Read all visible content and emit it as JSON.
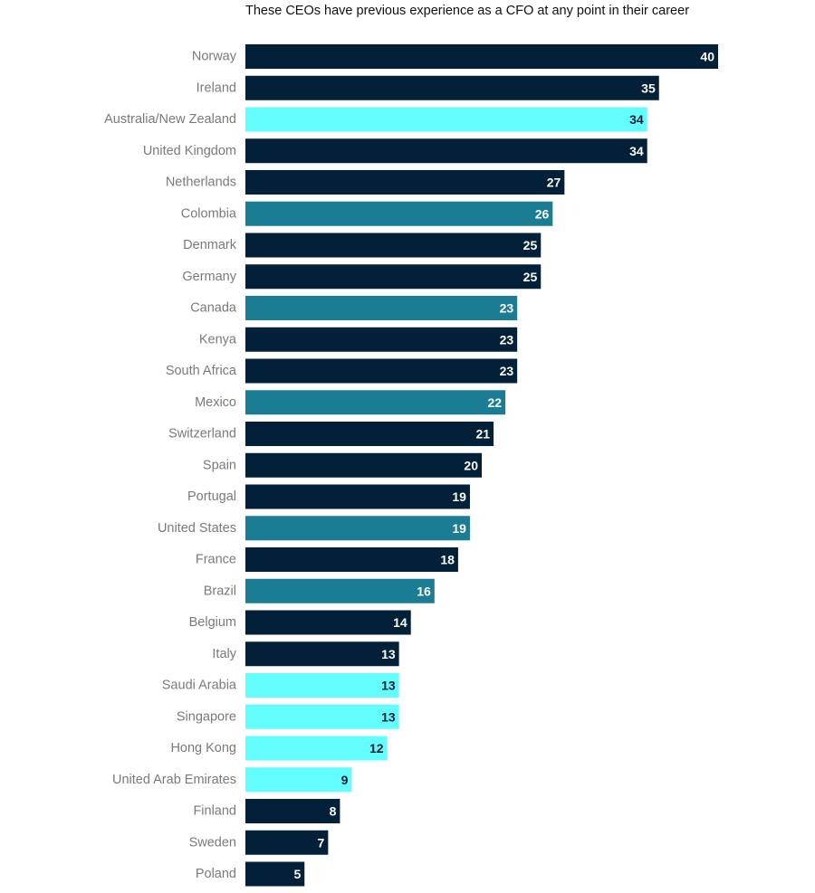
{
  "chart_data": {
    "type": "bar",
    "orientation": "horizontal",
    "title": "These CEOs have previous experience as a CFO at any point in their career",
    "xlabel": "",
    "ylabel": "",
    "xlim": [
      0,
      40
    ],
    "grid": false,
    "legend": "none",
    "categories": [
      "Norway",
      "Ireland",
      "Australia/New Zealand",
      "United Kingdom",
      "Netherlands",
      "Colombia",
      "Denmark",
      "Germany",
      "Canada",
      "Kenya",
      "South Africa",
      "Mexico",
      "Switzerland",
      "Spain",
      "Portugal",
      "United States",
      "France",
      "Brazil",
      "Belgium",
      "Italy",
      "Saudi Arabia",
      "Singapore",
      "Hong Kong",
      "United Arab Emirates",
      "Finland",
      "Sweden",
      "Poland"
    ],
    "values": [
      40,
      35,
      34,
      34,
      27,
      26,
      25,
      25,
      23,
      23,
      23,
      22,
      21,
      20,
      19,
      19,
      18,
      16,
      14,
      13,
      13,
      13,
      12,
      9,
      8,
      7,
      5
    ],
    "bar_color_groups": [
      "navy",
      "navy",
      "cyan",
      "navy",
      "navy",
      "teal",
      "navy",
      "navy",
      "teal",
      "navy",
      "navy",
      "teal",
      "navy",
      "navy",
      "navy",
      "teal",
      "navy",
      "teal",
      "navy",
      "navy",
      "cyan",
      "cyan",
      "cyan",
      "cyan",
      "navy",
      "navy",
      "navy"
    ],
    "colors": {
      "navy": "#022037",
      "teal": "#1a7d94",
      "cyan": "#63ffff",
      "label_on_dark": "#ffffff",
      "label_on_light": "#0b1f33",
      "category_text": "#7a7a7a"
    }
  }
}
